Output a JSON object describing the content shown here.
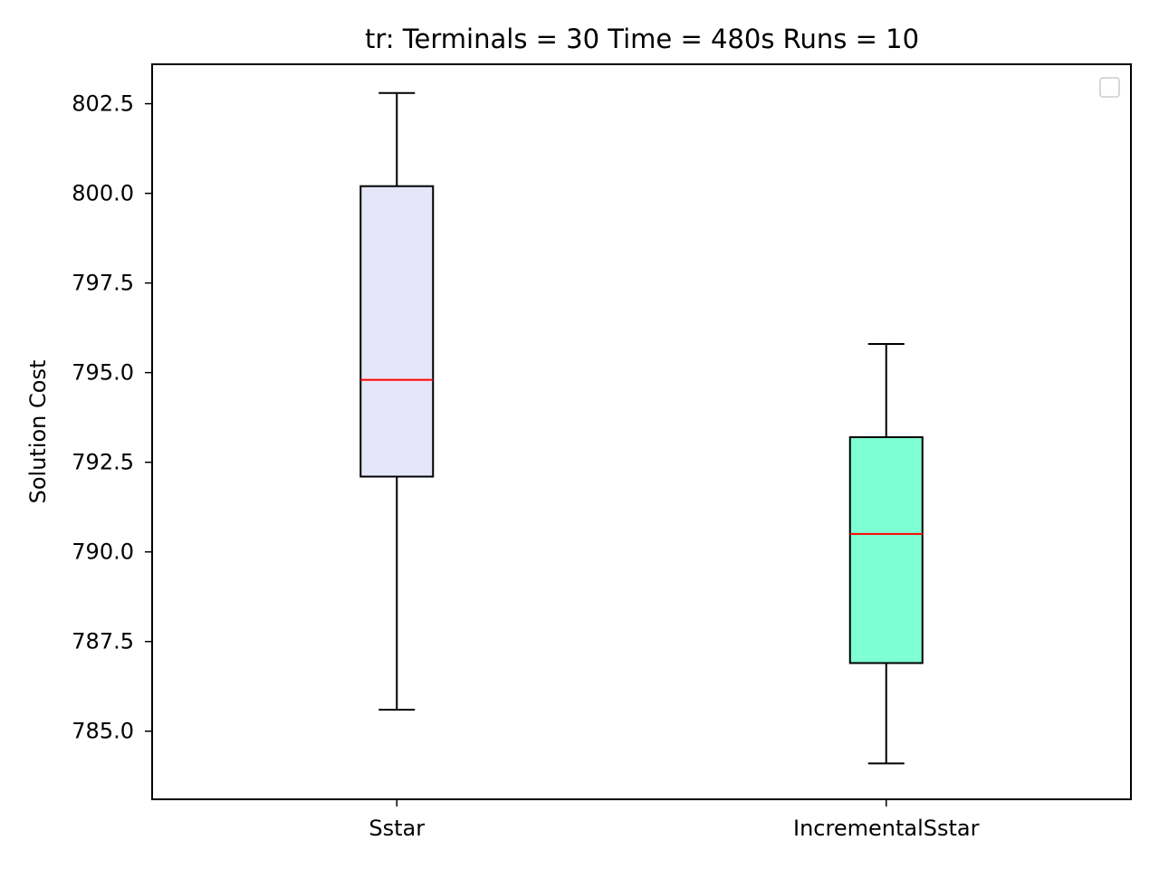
{
  "chart_data": {
    "type": "box",
    "title": "tr:  Terminals = 30  Time = 480s  Runs = 10",
    "xlabel": "",
    "ylabel": "Solution Cost",
    "ylim": [
      783.1,
      803.6
    ],
    "yticks": [
      "785.0",
      "787.5",
      "790.0",
      "792.5",
      "795.0",
      "797.5",
      "800.0",
      "802.5"
    ],
    "grid": false,
    "legend": "top-right (empty)",
    "median_color": "#ff0000",
    "categories": [
      "Sstar",
      "IncrementalSstar"
    ],
    "boxes": [
      {
        "whisker_low": 785.6,
        "q1": 792.1,
        "median": 794.8,
        "q3": 800.2,
        "whisker_high": 802.8,
        "color": "#e6e6fa"
      },
      {
        "whisker_low": 784.1,
        "q1": 786.9,
        "median": 790.5,
        "q3": 793.2,
        "whisker_high": 795.8,
        "color": "#7fffd4"
      }
    ]
  }
}
